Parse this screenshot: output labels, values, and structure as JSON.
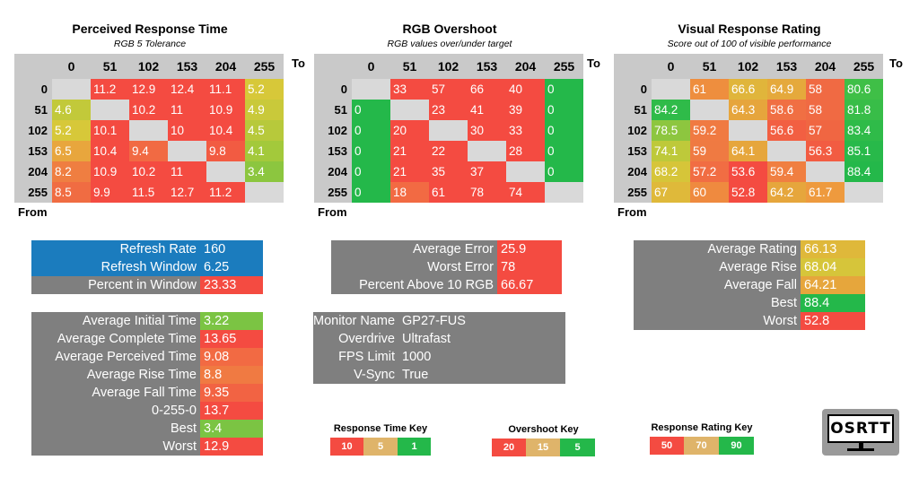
{
  "colors": {
    "green": "#4ec842",
    "red": "#f44b41",
    "blue": "#1b7cbe",
    "gray": "#7f7f7f",
    "diag": "#d9d9d9",
    "header": "#c9c9c9"
  },
  "axis": {
    "to": "To",
    "from": "From"
  },
  "levels": [
    "0",
    "51",
    "102",
    "153",
    "204",
    "255"
  ],
  "matrices": [
    {
      "title": "Perceived Response Time",
      "subtitle": "RGB 5 Tolerance",
      "rows": [
        [
          null,
          "11.2",
          "12.9",
          "12.4",
          "11.1",
          "5.2"
        ],
        [
          "4.6",
          null,
          "10.2",
          "11",
          "10.9",
          "4.9"
        ],
        [
          "5.2",
          "10.1",
          null,
          "10",
          "10.4",
          "4.5"
        ],
        [
          "6.5",
          "10.4",
          "9.4",
          null,
          "9.8",
          "4.1"
        ],
        [
          "8.2",
          "10.9",
          "10.2",
          "11",
          null,
          "3.4"
        ],
        [
          "8.5",
          "9.9",
          "11.5",
          "12.7",
          "11.2",
          null
        ]
      ],
      "colors": [
        [
          null,
          "#f44b41",
          "#f44b41",
          "#f44b41",
          "#f44b41",
          "#d7c839"
        ],
        [
          "#c2c93a",
          null,
          "#f44b41",
          "#f44b41",
          "#f44b41",
          "#c9c93a"
        ],
        [
          "#d7c839",
          "#f44b41",
          null,
          "#f44b41",
          "#f44b41",
          "#b7c93b"
        ],
        [
          "#e8a63d",
          "#f44b41",
          "#f16a43",
          null,
          "#f25b42",
          "#a3c93b"
        ],
        [
          "#ef7e41",
          "#f44b41",
          "#f44b41",
          "#f44b41",
          null,
          "#8cc63f"
        ],
        [
          "#f06c42",
          "#f44b41",
          "#f44b41",
          "#f44b41",
          "#f44b41",
          null
        ]
      ]
    },
    {
      "title": "RGB Overshoot",
      "subtitle": "RGB values over/under target",
      "rows": [
        [
          null,
          "33",
          "57",
          "66",
          "40",
          "0"
        ],
        [
          "0",
          null,
          "23",
          "41",
          "39",
          "0"
        ],
        [
          "0",
          "20",
          null,
          "30",
          "33",
          "0"
        ],
        [
          "0",
          "21",
          "22",
          null,
          "28",
          "0"
        ],
        [
          "0",
          "21",
          "35",
          "37",
          null,
          "0"
        ],
        [
          "0",
          "18",
          "61",
          "78",
          "74",
          null
        ]
      ],
      "colors": [
        [
          null,
          "#f44b41",
          "#f44b41",
          "#f44b41",
          "#f44b41",
          "#24b84a"
        ],
        [
          "#24b84a",
          null,
          "#f44b41",
          "#f44b41",
          "#f44b41",
          "#24b84a"
        ],
        [
          "#24b84a",
          "#f44b41",
          null,
          "#f44b41",
          "#f44b41",
          "#24b84a"
        ],
        [
          "#24b84a",
          "#f44b41",
          "#f44b41",
          null,
          "#f44b41",
          "#24b84a"
        ],
        [
          "#24b84a",
          "#f44b41",
          "#f44b41",
          "#f44b41",
          null,
          "#24b84a"
        ],
        [
          "#24b84a",
          "#f26a43",
          "#f44b41",
          "#f44b41",
          "#f44b41",
          null
        ]
      ]
    },
    {
      "title": "Visual Response Rating",
      "subtitle": "Score out of 100 of visible performance",
      "rows": [
        [
          null,
          "61",
          "66.6",
          "64.9",
          "58",
          "80.6"
        ],
        [
          "84.2",
          null,
          "64.3",
          "58.6",
          "58",
          "81.8"
        ],
        [
          "78.5",
          "59.2",
          null,
          "56.6",
          "57",
          "83.4"
        ],
        [
          "74.1",
          "59",
          "64.1",
          null,
          "56.3",
          "85.1"
        ],
        [
          "68.2",
          "57.2",
          "53.6",
          "59.4",
          null,
          "88.4"
        ],
        [
          "67",
          "60",
          "52.8",
          "64.2",
          "61.7",
          null
        ]
      ],
      "colors": [
        [
          null,
          "#ee8e3e",
          "#e0b53b",
          "#e5a93c",
          "#f06a43",
          "#3fbf47"
        ],
        [
          "#2fbb49",
          null,
          "#e6a53c",
          "#f06f43",
          "#f06a43",
          "#38bd48"
        ],
        [
          "#8dc63f",
          "#f07a42",
          null,
          "#f25f42",
          "#f06642",
          "#2fbb49"
        ],
        [
          "#bec93a",
          "#ef7a42",
          "#e6a63c",
          null,
          "#f25c42",
          "#28b94a"
        ],
        [
          "#d6c539",
          "#f16d43",
          "#f44b41",
          "#f07f41",
          null,
          "#24b84a"
        ],
        [
          "#dfb93a",
          "#ef8a3f",
          "#f44b41",
          "#e6a63c",
          "#ee9a3e",
          null
        ]
      ]
    }
  ],
  "stats": {
    "refresh": {
      "rows": [
        {
          "label": "Refresh Rate",
          "value": "160",
          "label_color": "#1b7cbe",
          "value_color": "#1b7cbe"
        },
        {
          "label": "Refresh Window",
          "value": "6.25",
          "label_color": "#1b7cbe",
          "value_color": "#1b7cbe"
        },
        {
          "label": "Percent in Window",
          "value": "23.33",
          "label_color": "#7f7f7f",
          "value_color": "#f44b41"
        }
      ]
    },
    "times": {
      "rows": [
        {
          "label": "Average Initial Time",
          "value": "3.22",
          "value_color": "#7bc443"
        },
        {
          "label": "Average Complete Time",
          "value": "13.65",
          "value_color": "#f44b41"
        },
        {
          "label": "Average Perceived Time",
          "value": "9.08",
          "value_color": "#f26a43"
        },
        {
          "label": "Average Rise Time",
          "value": "8.8",
          "value_color": "#f07a42"
        },
        {
          "label": "Average Fall Time",
          "value": "9.35",
          "value_color": "#f26343"
        },
        {
          "label": "0-255-0",
          "value": "13.7",
          "value_color": "#f44b41"
        },
        {
          "label": "Best",
          "value": "3.4",
          "value_color": "#7bc443"
        },
        {
          "label": "Worst",
          "value": "12.9",
          "value_color": "#f44b41"
        }
      ]
    },
    "overshoot": {
      "rows": [
        {
          "label": "Average Error",
          "value": "25.9",
          "value_color": "#f44b41"
        },
        {
          "label": "Worst Error",
          "value": "78",
          "value_color": "#f44b41"
        },
        {
          "label": "Percent Above 10 RGB",
          "value": "66.67",
          "value_color": "#f44b41"
        }
      ]
    },
    "monitor": {
      "rows": [
        {
          "label": "Monitor Name",
          "value": "GP27-FUS"
        },
        {
          "label": "Overdrive",
          "value": "Ultrafast"
        },
        {
          "label": "FPS Limit",
          "value": "1000"
        },
        {
          "label": "V-Sync",
          "value": "True"
        }
      ]
    },
    "rating": {
      "rows": [
        {
          "label": "Average Rating",
          "value": "66.13",
          "value_color": "#dfb83a"
        },
        {
          "label": "Average Rise",
          "value": "68.04",
          "value_color": "#d6c53a"
        },
        {
          "label": "Average Fall",
          "value": "64.21",
          "value_color": "#e6a63c"
        },
        {
          "label": "Best",
          "value": "88.4",
          "value_color": "#24b84a"
        },
        {
          "label": "Worst",
          "value": "52.8",
          "value_color": "#f44b41"
        }
      ]
    }
  },
  "keys": [
    {
      "title": "Response Time Key",
      "values": [
        "10",
        "5",
        "1"
      ],
      "colors": [
        "#f44b41",
        "#dfb46a",
        "#24b84a"
      ]
    },
    {
      "title": "Overshoot Key",
      "values": [
        "20",
        "15",
        "5"
      ],
      "colors": [
        "#f44b41",
        "#dfb46a",
        "#24b84a"
      ]
    },
    {
      "title": "Response Rating Key",
      "values": [
        "50",
        "70",
        "90"
      ],
      "colors": [
        "#f44b41",
        "#dfb46a",
        "#24b84a"
      ]
    }
  ],
  "logo": {
    "text": "OSRTT",
    "icon": "monitor-logo-icon"
  }
}
